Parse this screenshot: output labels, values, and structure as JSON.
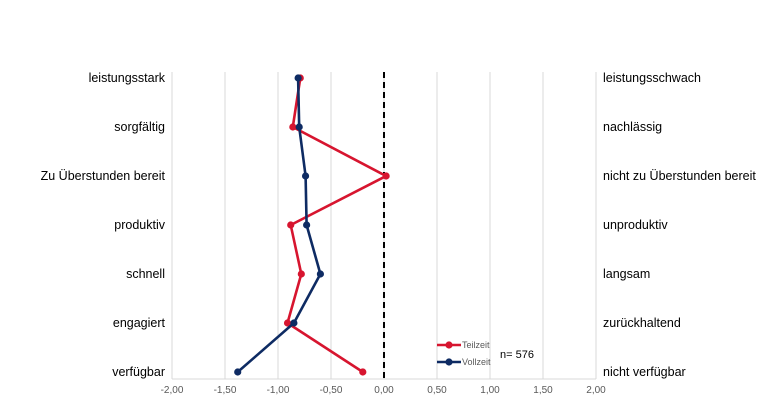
{
  "chart_data": {
    "type": "line",
    "orientation": "horizontal-profile",
    "xlim": [
      -2.0,
      2.0
    ],
    "x_ticks": [
      -2.0,
      -1.5,
      -1.0,
      -0.5,
      0.0,
      0.5,
      1.0,
      1.5,
      2.0
    ],
    "x_tick_labels": [
      "-2,00",
      "-1,50",
      "-1,00",
      "-0,50",
      "0,00",
      "0,50",
      "1,00",
      "1,50",
      "2,00"
    ],
    "categories_left": [
      "leistungsstark",
      "sorgfältig",
      "Zu Überstunden bereit",
      "produktiv",
      "schnell",
      "engagiert",
      "verfügbar"
    ],
    "categories_right": [
      "leistungsschwach",
      "nachlässig",
      "nicht zu Überstunden bereit",
      "unproduktiv",
      "langsam",
      "zurückhaltend",
      "nicht verfügbar"
    ],
    "reference_line": 0.0,
    "grid": true,
    "legend_placement": "bottom-center",
    "annotation": "n= 576",
    "colors": {
      "Teilzeit": "#d7152f",
      "Vollzeit": "#0e2b63"
    },
    "series": [
      {
        "name": "Teilzeit",
        "values": [
          -0.79,
          -0.86,
          0.02,
          -0.88,
          -0.78,
          -0.91,
          -0.2
        ]
      },
      {
        "name": "Vollzeit",
        "values": [
          -0.81,
          -0.8,
          -0.74,
          -0.73,
          -0.6,
          -0.85,
          -1.38
        ]
      }
    ]
  }
}
